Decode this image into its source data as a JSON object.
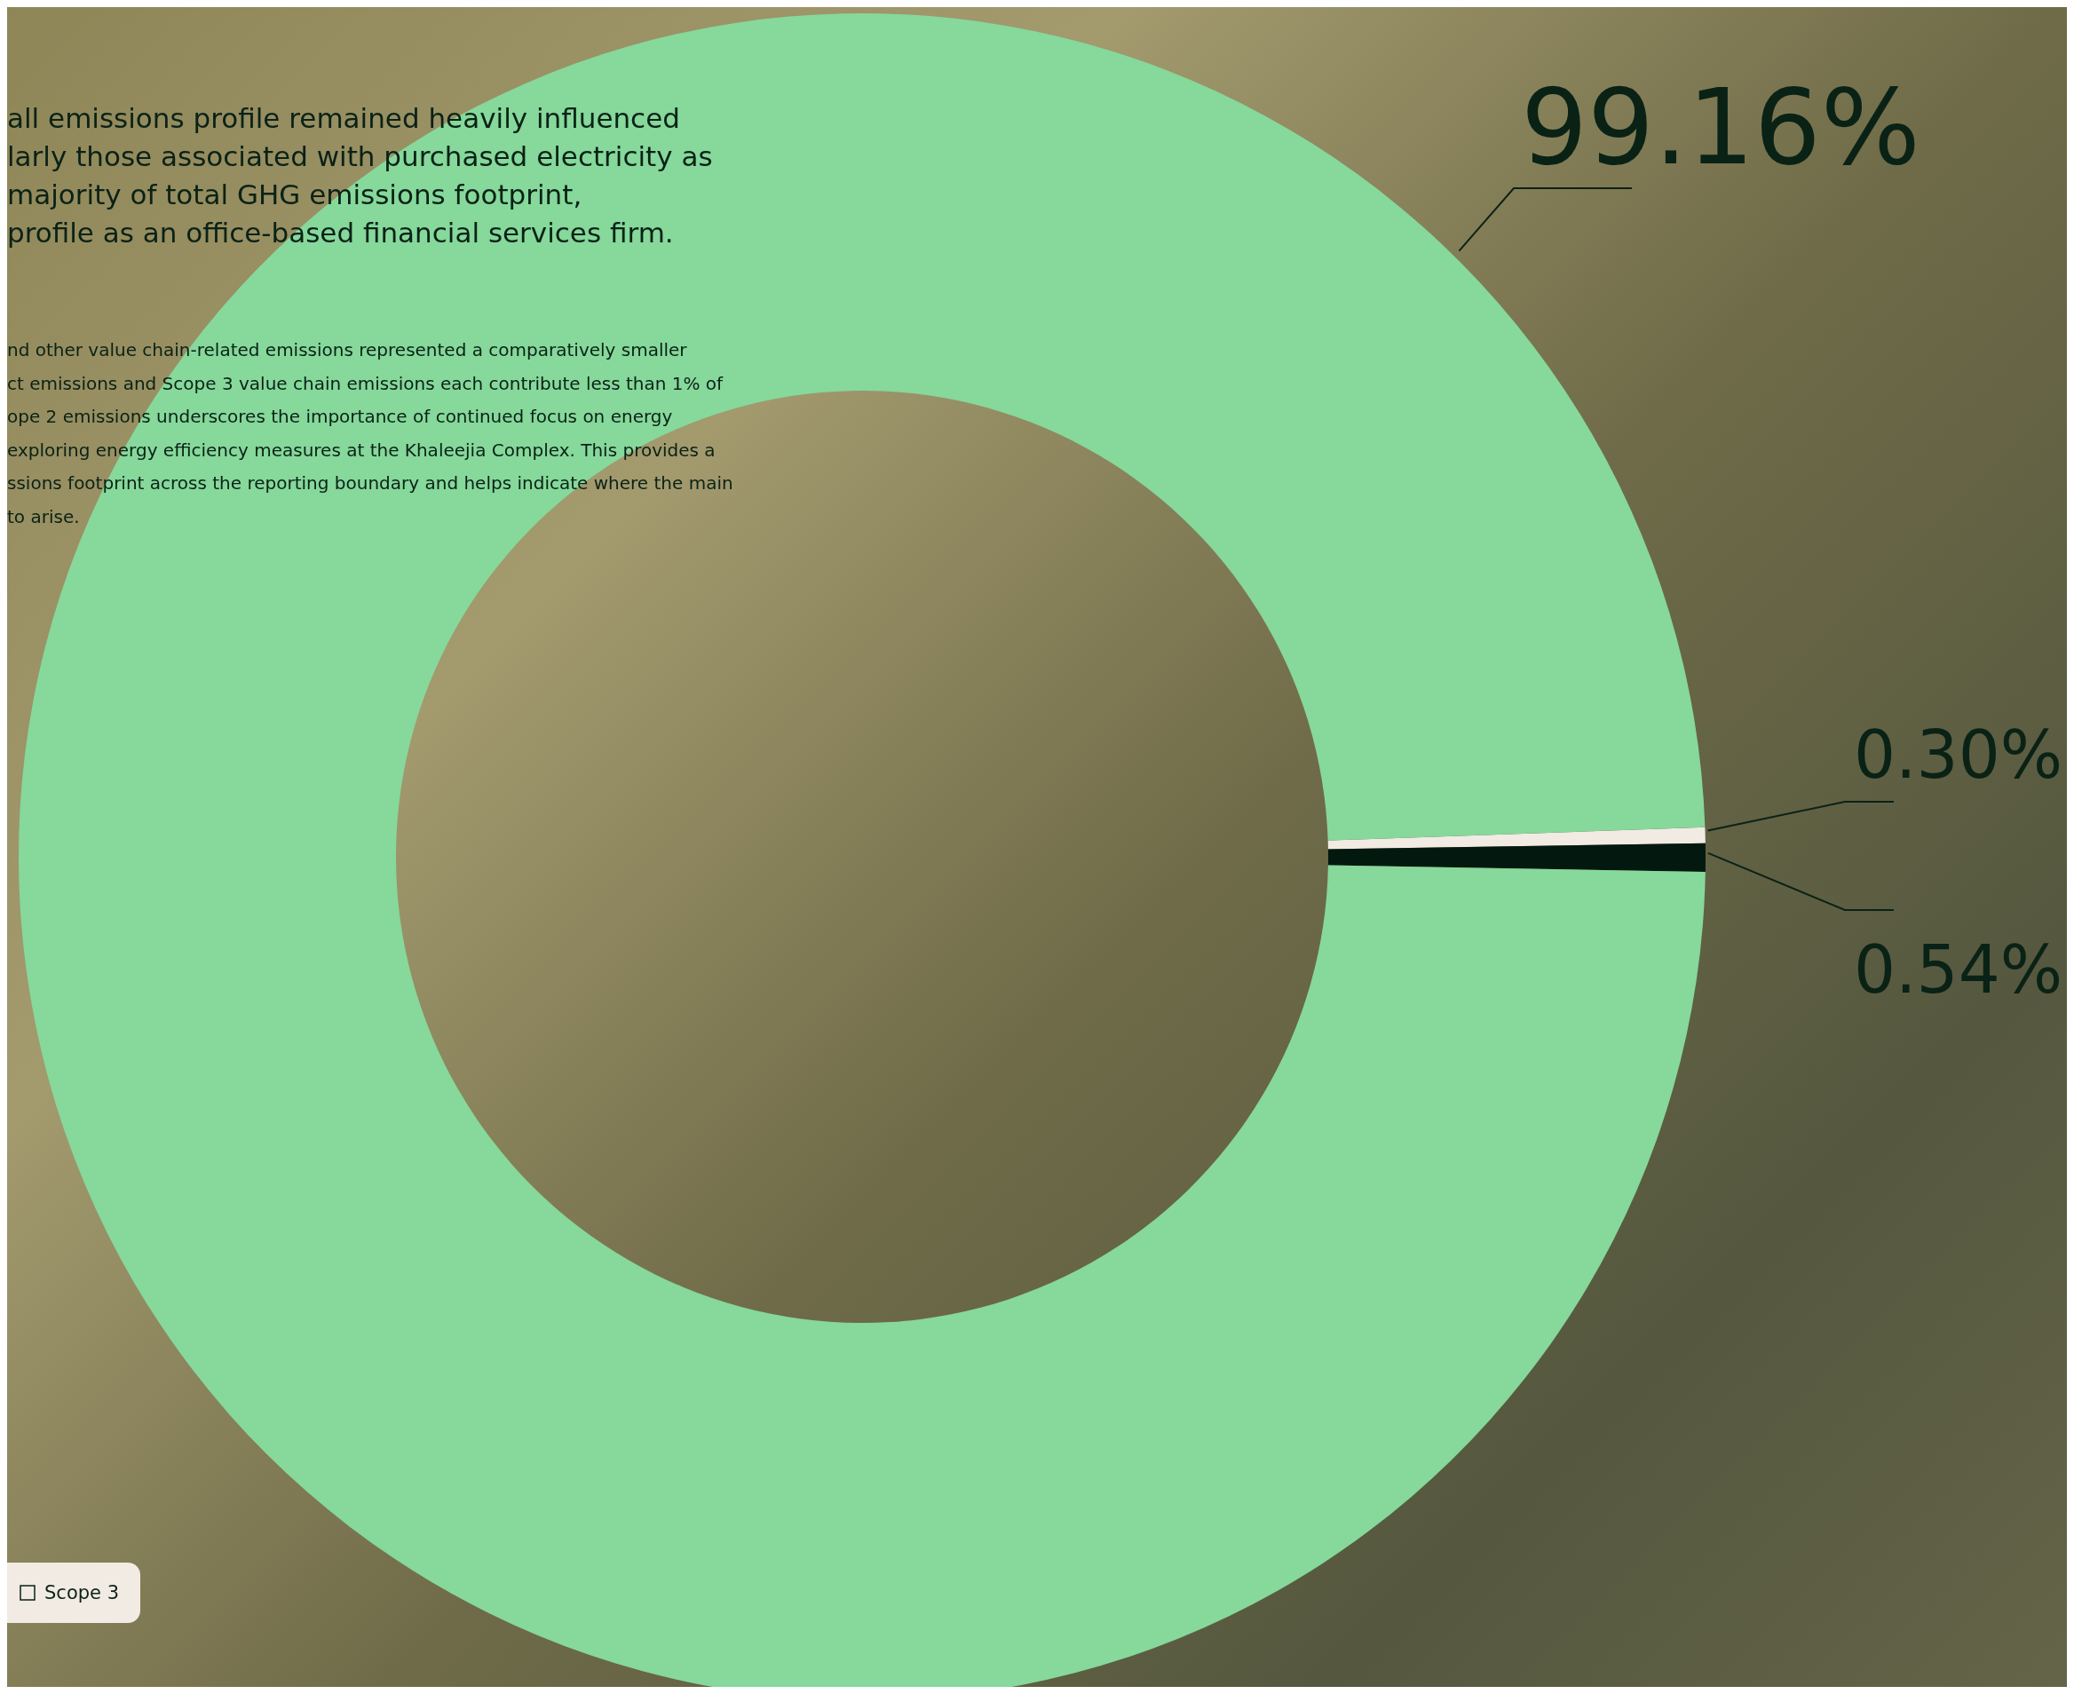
{
  "chart_data": {
    "type": "donut",
    "categories": [
      "Scope 3",
      null,
      null
    ],
    "values": [
      0.3,
      0.54,
      99.16
    ],
    "colors": [
      "#f1ebe4",
      "#03190f",
      "#86d89b"
    ],
    "value_labels": [
      "0.30%",
      "0.54%",
      "99.16%"
    ],
    "legend": "bottom left",
    "annotations": [
      "all emissions profile remained heavily influenced\nlarly those associated with purchased electricity as\nmajority of total GHG emissions footprint,\nprofile as an office-based financial services firm.",
      "nd other value chain-related emissions represented a comparatively smaller\nct emissions and Scope 3 value chain emissions each contribute less than 1% of\nope 2 emissions underscores the importance of continued focus on energy\nexploring energy efficiency measures at the Khaleejia Complex. This provides a\nssions footprint across the reporting boundary and helps indicate where the main\nto arise."
    ]
  }
}
